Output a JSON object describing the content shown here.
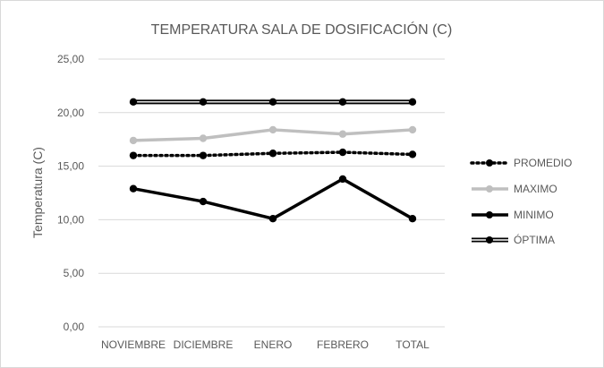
{
  "chart_data": {
    "type": "line",
    "title": "TEMPERATURA SALA DE DOSIFICACIÓN (C)",
    "xlabel": "",
    "ylabel": "Temperatura (C)",
    "categories": [
      "NOVIEMBRE",
      "DICIEMBRE",
      "ENERO",
      "FEBRERO",
      "TOTAL"
    ],
    "ylim": [
      0,
      25
    ],
    "yticks": [
      "0,00",
      "5,00",
      "10,00",
      "15,00",
      "20,00",
      "25,00"
    ],
    "grid": true,
    "legend_position": "right",
    "series": [
      {
        "name": "PROMEDIO",
        "values": [
          16.0,
          16.0,
          16.2,
          16.3,
          16.1
        ],
        "color": "#000000",
        "style": "dotted"
      },
      {
        "name": "MAXIMO",
        "values": [
          17.4,
          17.6,
          18.4,
          18.0,
          18.4
        ],
        "color": "#bfbfbf",
        "style": "solid"
      },
      {
        "name": "MINIMO",
        "values": [
          12.9,
          11.7,
          10.1,
          13.8,
          10.1
        ],
        "color": "#000000",
        "style": "solid"
      },
      {
        "name": "ÓPTIMA",
        "values": [
          21.0,
          21.0,
          21.0,
          21.0,
          21.0
        ],
        "color": "#000000",
        "style": "double"
      }
    ]
  }
}
